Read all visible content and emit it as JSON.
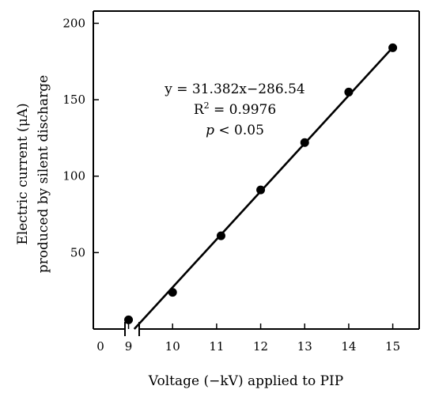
{
  "chart_data": {
    "type": "scatter",
    "xlabel": "Voltage (−kV) applied to PIP",
    "ylabel_lines": [
      "Electric current (μA)",
      "produced by silent discharge"
    ],
    "x_ticks": [
      0,
      9,
      10,
      11,
      12,
      13,
      14,
      15
    ],
    "y_ticks": [
      50,
      100,
      150,
      200
    ],
    "x_tick_labels": [
      "0",
      "9",
      "10",
      "11",
      "12",
      "13",
      "14",
      "15"
    ],
    "y_tick_labels": [
      "50",
      "100",
      "150",
      "200"
    ],
    "xlim": [
      8.2,
      15.6
    ],
    "ylim": [
      0,
      208
    ],
    "x_axis_break": true,
    "points": [
      {
        "x": 9.0,
        "y": 6
      },
      {
        "x": 10.0,
        "y": 24
      },
      {
        "x": 11.1,
        "y": 61
      },
      {
        "x": 12.0,
        "y": 91
      },
      {
        "x": 13.0,
        "y": 122
      },
      {
        "x": 14.0,
        "y": 155
      },
      {
        "x": 15.0,
        "y": 184
      }
    ],
    "fit": {
      "slope": 31.382,
      "intercept": -286.54,
      "x_from": 9.13,
      "x_to": 15.0
    },
    "annotations": {
      "equation": "y = 31.382x−286.54",
      "r2_prefix": "R",
      "r2_sup": "2",
      "r2_value": " = 0.9976",
      "p_var": "p",
      "p_rest": " < 0.05"
    }
  }
}
